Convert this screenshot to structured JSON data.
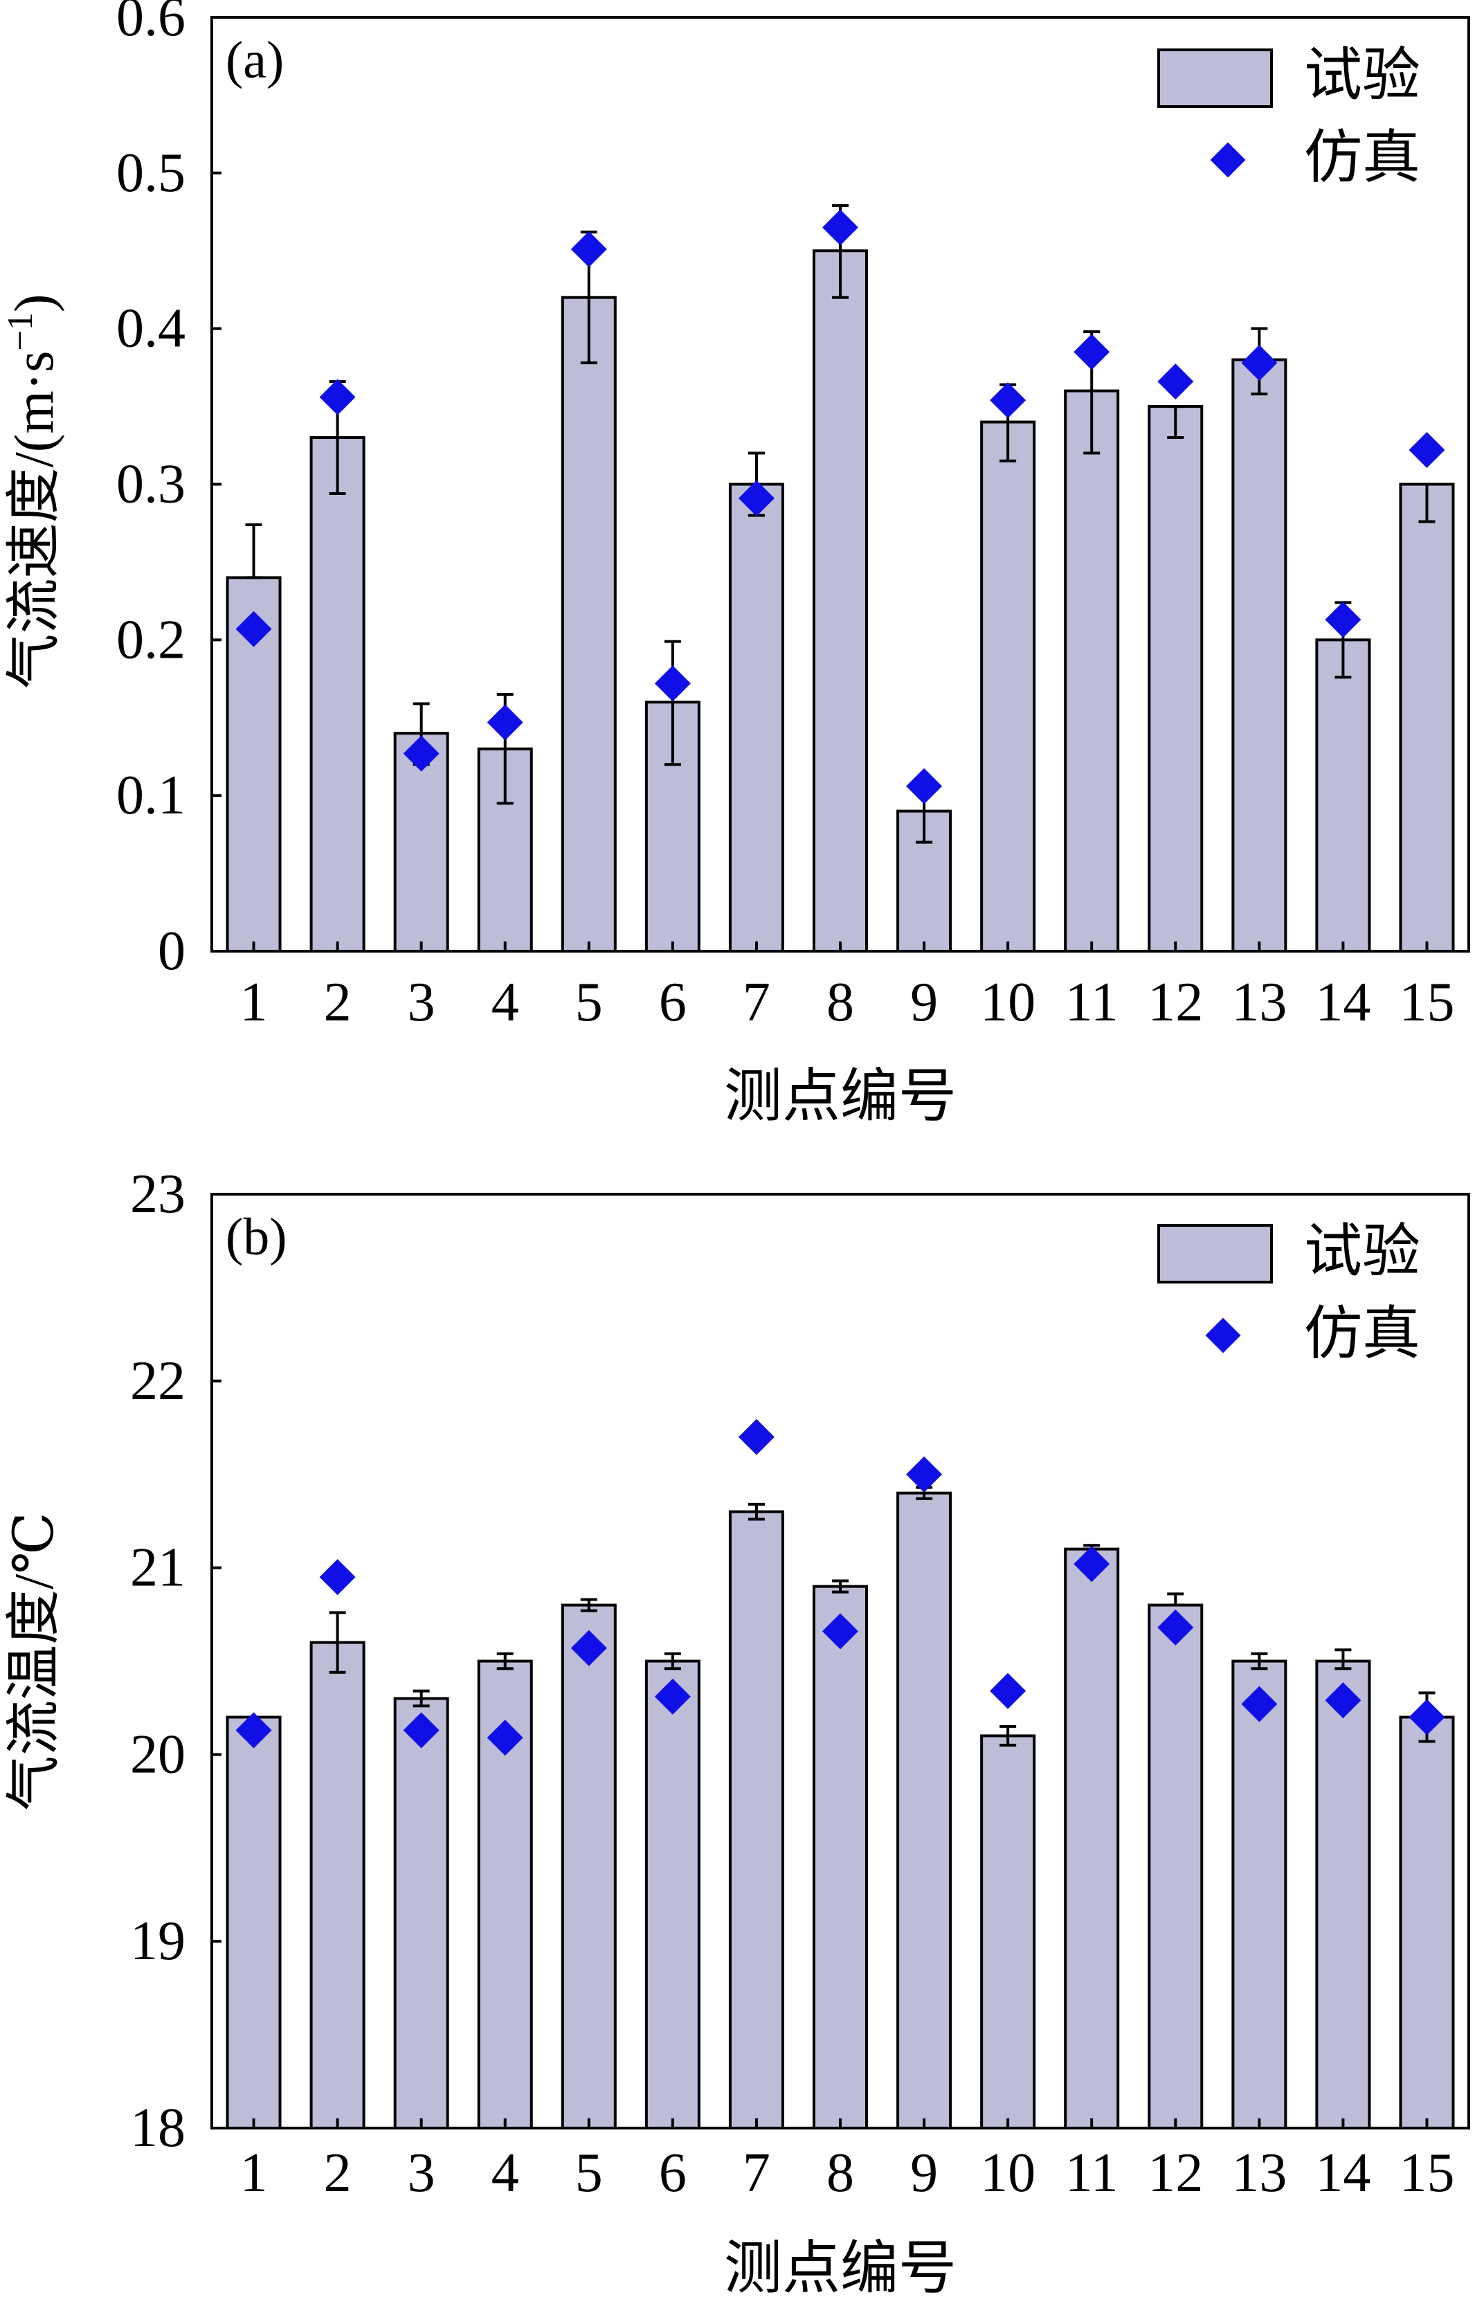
{
  "colors": {
    "bar_fill": "#BDBDD8",
    "bar_stroke": "#000000",
    "marker": "#1010E6",
    "axis": "#000000",
    "background": "#FFFFFF"
  },
  "chart_data": [
    {
      "type": "bar",
      "panel_label": "(a)",
      "title": "",
      "xlabel": "测点编号",
      "ylabel": "气流速度/(m·s",
      "ylabel_sup": "−1",
      "ylabel_end": ")",
      "ylim": [
        0,
        0.6
      ],
      "yticks": [
        "0",
        "0.1",
        "0.2",
        "0.3",
        "0.4",
        "0.5",
        "0.6"
      ],
      "ytick_values": [
        0,
        0.1,
        0.2,
        0.3,
        0.4,
        0.5,
        0.6
      ],
      "categories": [
        "1",
        "2",
        "3",
        "4",
        "5",
        "6",
        "7",
        "8",
        "9",
        "10",
        "11",
        "12",
        "13",
        "14",
        "15"
      ],
      "legend_position": "top-right",
      "series": [
        {
          "name": "试验",
          "kind": "bar",
          "values": [
            0.24,
            0.33,
            0.14,
            0.13,
            0.42,
            0.16,
            0.3,
            0.45,
            0.09,
            0.34,
            0.36,
            0.35,
            0.38,
            0.2,
            0.3
          ],
          "err_low": [
            0.24,
            0.294,
            0.12,
            0.095,
            0.378,
            0.12,
            0.28,
            0.42,
            0.07,
            0.315,
            0.32,
            0.33,
            0.358,
            0.176,
            0.276
          ],
          "err_high": [
            0.274,
            0.366,
            0.159,
            0.165,
            0.462,
            0.199,
            0.32,
            0.479,
            0.109,
            0.364,
            0.398,
            0.35,
            0.4,
            0.224,
            0.3
          ]
        },
        {
          "name": "仿真",
          "kind": "scatter",
          "marker": "diamond",
          "values": [
            0.207,
            0.356,
            0.127,
            0.147,
            0.451,
            0.172,
            0.291,
            0.465,
            0.106,
            0.354,
            0.385,
            0.366,
            0.378,
            0.213,
            0.322
          ]
        }
      ]
    },
    {
      "type": "bar",
      "panel_label": "(b)",
      "title": "",
      "xlabel": "测点编号",
      "ylabel": "气流温度/℃",
      "ylim": [
        18,
        23
      ],
      "yticks": [
        "18",
        "19",
        "20",
        "21",
        "22",
        "23"
      ],
      "ytick_values": [
        18,
        19,
        20,
        21,
        22,
        23
      ],
      "categories": [
        "1",
        "2",
        "3",
        "4",
        "5",
        "6",
        "7",
        "8",
        "9",
        "10",
        "11",
        "12",
        "13",
        "14",
        "15"
      ],
      "legend_position": "top-right",
      "series": [
        {
          "name": "试验",
          "kind": "bar",
          "values": [
            20.2,
            20.6,
            20.3,
            20.5,
            20.8,
            20.5,
            21.3,
            20.9,
            21.4,
            20.1,
            21.1,
            20.8,
            20.5,
            20.5,
            20.2
          ],
          "err_low": [
            20.2,
            20.44,
            20.26,
            20.46,
            20.77,
            20.46,
            21.26,
            20.87,
            21.37,
            20.05,
            21.1,
            20.8,
            20.46,
            20.46,
            20.07
          ],
          "err_high": [
            20.2,
            20.76,
            20.34,
            20.54,
            20.83,
            20.54,
            21.34,
            20.93,
            21.43,
            20.15,
            21.12,
            20.86,
            20.54,
            20.56,
            20.33
          ]
        },
        {
          "name": "仿真",
          "kind": "scatter",
          "marker": "diamond",
          "values": [
            20.13,
            20.95,
            20.13,
            20.09,
            20.57,
            20.31,
            21.7,
            20.66,
            21.5,
            20.34,
            21.02,
            20.68,
            20.27,
            20.29,
            20.2
          ]
        }
      ]
    }
  ]
}
